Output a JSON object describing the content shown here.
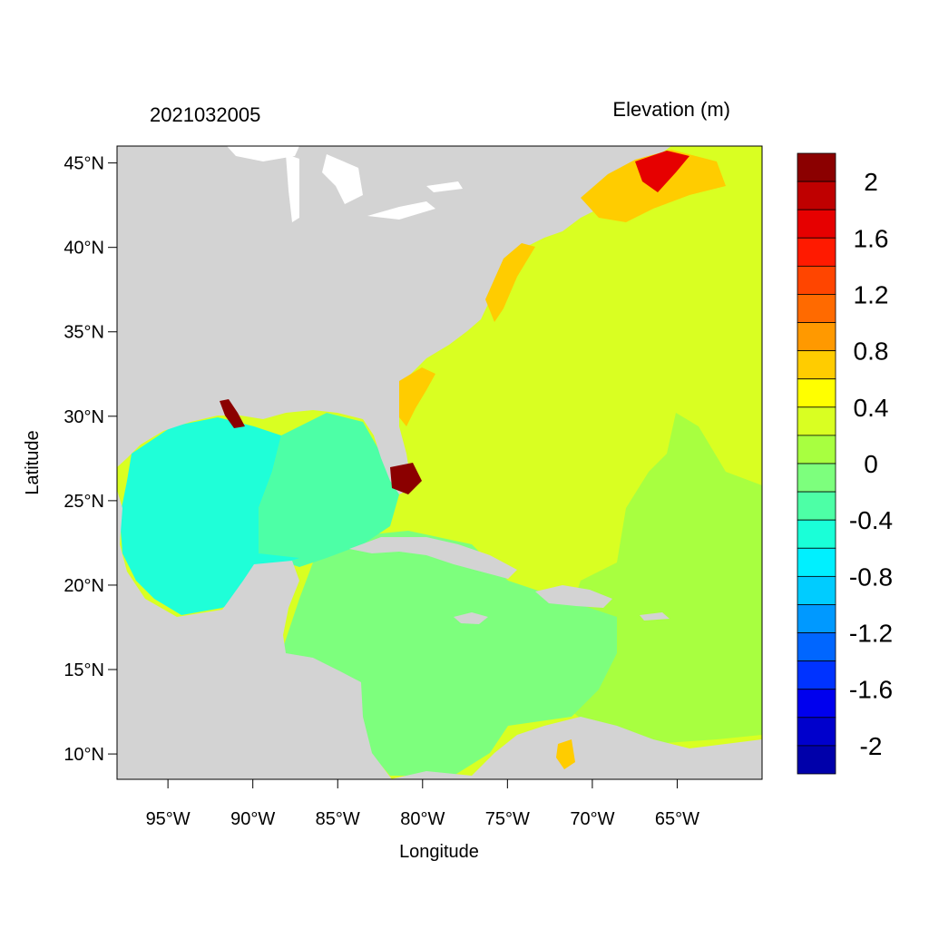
{
  "header": {
    "date_label": "2021032005",
    "variable_label": "Elevation (m)"
  },
  "axes": {
    "xlabel": "Longitude",
    "ylabel": "Latitude",
    "lon_range": [
      -98,
      -60
    ],
    "lat_range": [
      8.5,
      46
    ],
    "x_ticks": [
      {
        "value": -95,
        "label": "95°W"
      },
      {
        "value": -90,
        "label": "90°W"
      },
      {
        "value": -85,
        "label": "85°W"
      },
      {
        "value": -80,
        "label": "80°W"
      },
      {
        "value": -75,
        "label": "75°W"
      },
      {
        "value": -70,
        "label": "70°W"
      },
      {
        "value": -65,
        "label": "65°W"
      }
    ],
    "y_ticks": [
      {
        "value": 45,
        "label": "45°N"
      },
      {
        "value": 40,
        "label": "40°N"
      },
      {
        "value": 35,
        "label": "35°N"
      },
      {
        "value": 30,
        "label": "30°N"
      },
      {
        "value": 25,
        "label": "25°N"
      },
      {
        "value": 20,
        "label": "20°N"
      },
      {
        "value": 15,
        "label": "15°N"
      },
      {
        "value": 10,
        "label": "10°N"
      }
    ]
  },
  "colorbar": {
    "colors_top_to_bottom": [
      "#8b0000",
      "#bf0000",
      "#e60000",
      "#ff1a00",
      "#ff4500",
      "#ff6a00",
      "#ff9900",
      "#ffcc00",
      "#ffff00",
      "#d9ff22",
      "#a8ff40",
      "#7dff7d",
      "#4dffa6",
      "#1affd8",
      "#00f0ff",
      "#00ccff",
      "#0099ff",
      "#0066ff",
      "#0033ff",
      "#0000ee",
      "#0000cc",
      "#0000aa"
    ],
    "labels": [
      "2",
      "1.6",
      "1.2",
      "0.8",
      "0.4",
      "0",
      "-0.4",
      "-0.8",
      "-1.2",
      "-1.6",
      "-2"
    ]
  },
  "map_colors": {
    "land": "#d3d3d3",
    "water_gulf": "#1fffd8",
    "water_gulf_east": "#4dffa6",
    "water_caribbean": "#7dff7d",
    "water_atlantic": "#d9ff22",
    "water_atlantic_se": "#a8ff40",
    "coastal_high": "#ffcc00",
    "surge_red": "#e60000",
    "surge_dark": "#8b0000",
    "lakes": "#ffffff"
  }
}
